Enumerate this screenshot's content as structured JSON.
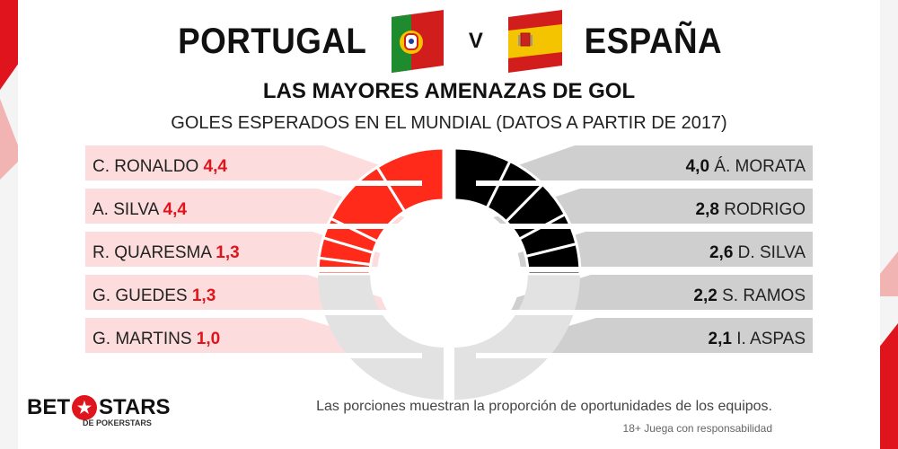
{
  "header": {
    "team_left": "PORTUGAL",
    "vs": "V",
    "team_right": "ESPAÑA",
    "title": "LAS MAYORES AMENAZAS DE GOL",
    "subtitle": "GOLES ESPERADOS EN EL MUNDIAL (DATOS A PARTIR DE 2017)"
  },
  "chart_data": {
    "type": "donut",
    "series": [
      {
        "name": "PORTUGAL",
        "side": "left",
        "color": "#ff2a1a",
        "remainder_color": "#e2e2e2",
        "share": 0.5,
        "players": [
          {
            "label": "C. RONALDO",
            "value": 4.4,
            "value_text": "4,4"
          },
          {
            "label": "A. SILVA",
            "value": 4.4,
            "value_text": "4,4"
          },
          {
            "label": "R. QUARESMA",
            "value": 1.3,
            "value_text": "1,3"
          },
          {
            "label": "G. GUEDES",
            "value": 1.3,
            "value_text": "1,3"
          },
          {
            "label": "G. MARTINS",
            "value": 1.0,
            "value_text": "1,0"
          }
        ]
      },
      {
        "name": "ESPAÑA",
        "side": "right",
        "color": "#000000",
        "remainder_color": "#e2e2e2",
        "share": 0.5,
        "players": [
          {
            "label": "Á. MORATA",
            "value": 4.0,
            "value_text": "4,0"
          },
          {
            "label": "RODRIGO",
            "value": 2.8,
            "value_text": "2,8"
          },
          {
            "label": "D. SILVA",
            "value": 2.6,
            "value_text": "2,6"
          },
          {
            "label": "S. RAMOS",
            "value": 2.2,
            "value_text": "2,2"
          },
          {
            "label": "I. ASPAS",
            "value": 2.1,
            "value_text": "2,1"
          }
        ]
      }
    ]
  },
  "footer": {
    "logo_left": "BET",
    "logo_right": "STARS",
    "logo_sub": "DE POKERSTARS",
    "note": "Las porciones muestran la proporción de oportunidades de los equipos.",
    "disclaimer": "18+ Juega con responsabilidad"
  },
  "colors": {
    "accent_red": "#e0141c",
    "panel_left": "#fcdcdc",
    "panel_right": "#cfcfcf"
  }
}
